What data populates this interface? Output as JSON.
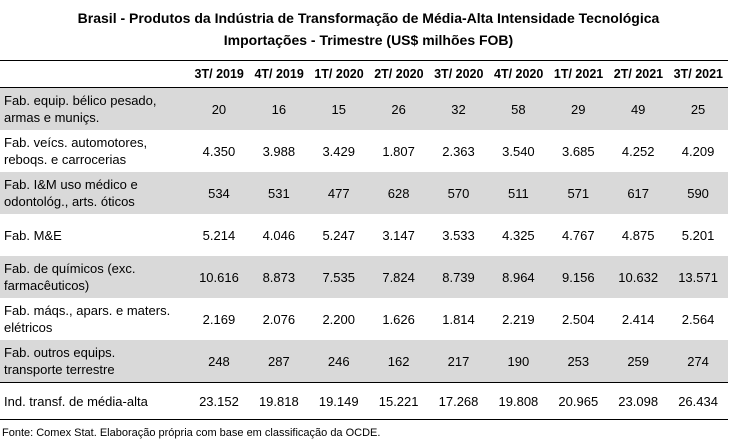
{
  "title": "Brasil - Produtos da Indústria de Transformação de Média-Alta Intensidade Tecnológica",
  "subtitle": "Importações - Trimestre (US$ milhões FOB)",
  "columns": [
    "3T/ 2019",
    "4T/ 2019",
    "1T/ 2020",
    "2T/ 2020",
    "3T/ 2020",
    "4T/ 2020",
    "1T/ 2021",
    "2T/ 2021",
    "3T/ 2021"
  ],
  "rows": [
    {
      "label": "Fab. equip. bélico pesado, armas e munições.",
      "label_display": "Fab. equip. bélico pesado,\narmas e muniçs.",
      "values": [
        "20",
        "16",
        "15",
        "26",
        "32",
        "58",
        "29",
        "49",
        "25"
      ]
    },
    {
      "label_display": "Fab. veícs. automotores,\nreboqs. e carrocerias",
      "values": [
        "4.350",
        "3.988",
        "3.429",
        "1.807",
        "2.363",
        "3.540",
        "3.685",
        "4.252",
        "4.209"
      ]
    },
    {
      "label_display": "Fab. I&M uso médico e\nodontológ., arts. óticos",
      "values": [
        "534",
        "531",
        "477",
        "628",
        "570",
        "511",
        "571",
        "617",
        "590"
      ]
    },
    {
      "label_display": "Fab. M&E",
      "values": [
        "5.214",
        "4.046",
        "5.247",
        "3.147",
        "3.533",
        "4.325",
        "4.767",
        "4.875",
        "5.201"
      ]
    },
    {
      "label_display": "Fab. de químicos (exc.\nfarmacêuticos)",
      "values": [
        "10.616",
        "8.873",
        "7.535",
        "7.824",
        "8.739",
        "8.964",
        "9.156",
        "10.632",
        "13.571"
      ]
    },
    {
      "label_display": "Fab. máqs., apars. e maters.\nelétricos",
      "values": [
        "2.169",
        "2.076",
        "2.200",
        "1.626",
        "1.814",
        "2.219",
        "2.504",
        "2.414",
        "2.564"
      ]
    },
    {
      "label_display": "Fab. outros equips.\ntransporte terrestre",
      "values": [
        "248",
        "287",
        "246",
        "162",
        "217",
        "190",
        "253",
        "259",
        "274"
      ]
    }
  ],
  "total": {
    "label_display": "Ind. transf. de média-alta",
    "values": [
      "23.152",
      "19.818",
      "19.149",
      "15.221",
      "17.268",
      "19.808",
      "20.965",
      "23.098",
      "26.434"
    ]
  },
  "source": "Fonte: Comex Stat. Elaboração própria com base em classificação da OCDE.",
  "colors": {
    "shade": "#d9d9d9"
  }
}
